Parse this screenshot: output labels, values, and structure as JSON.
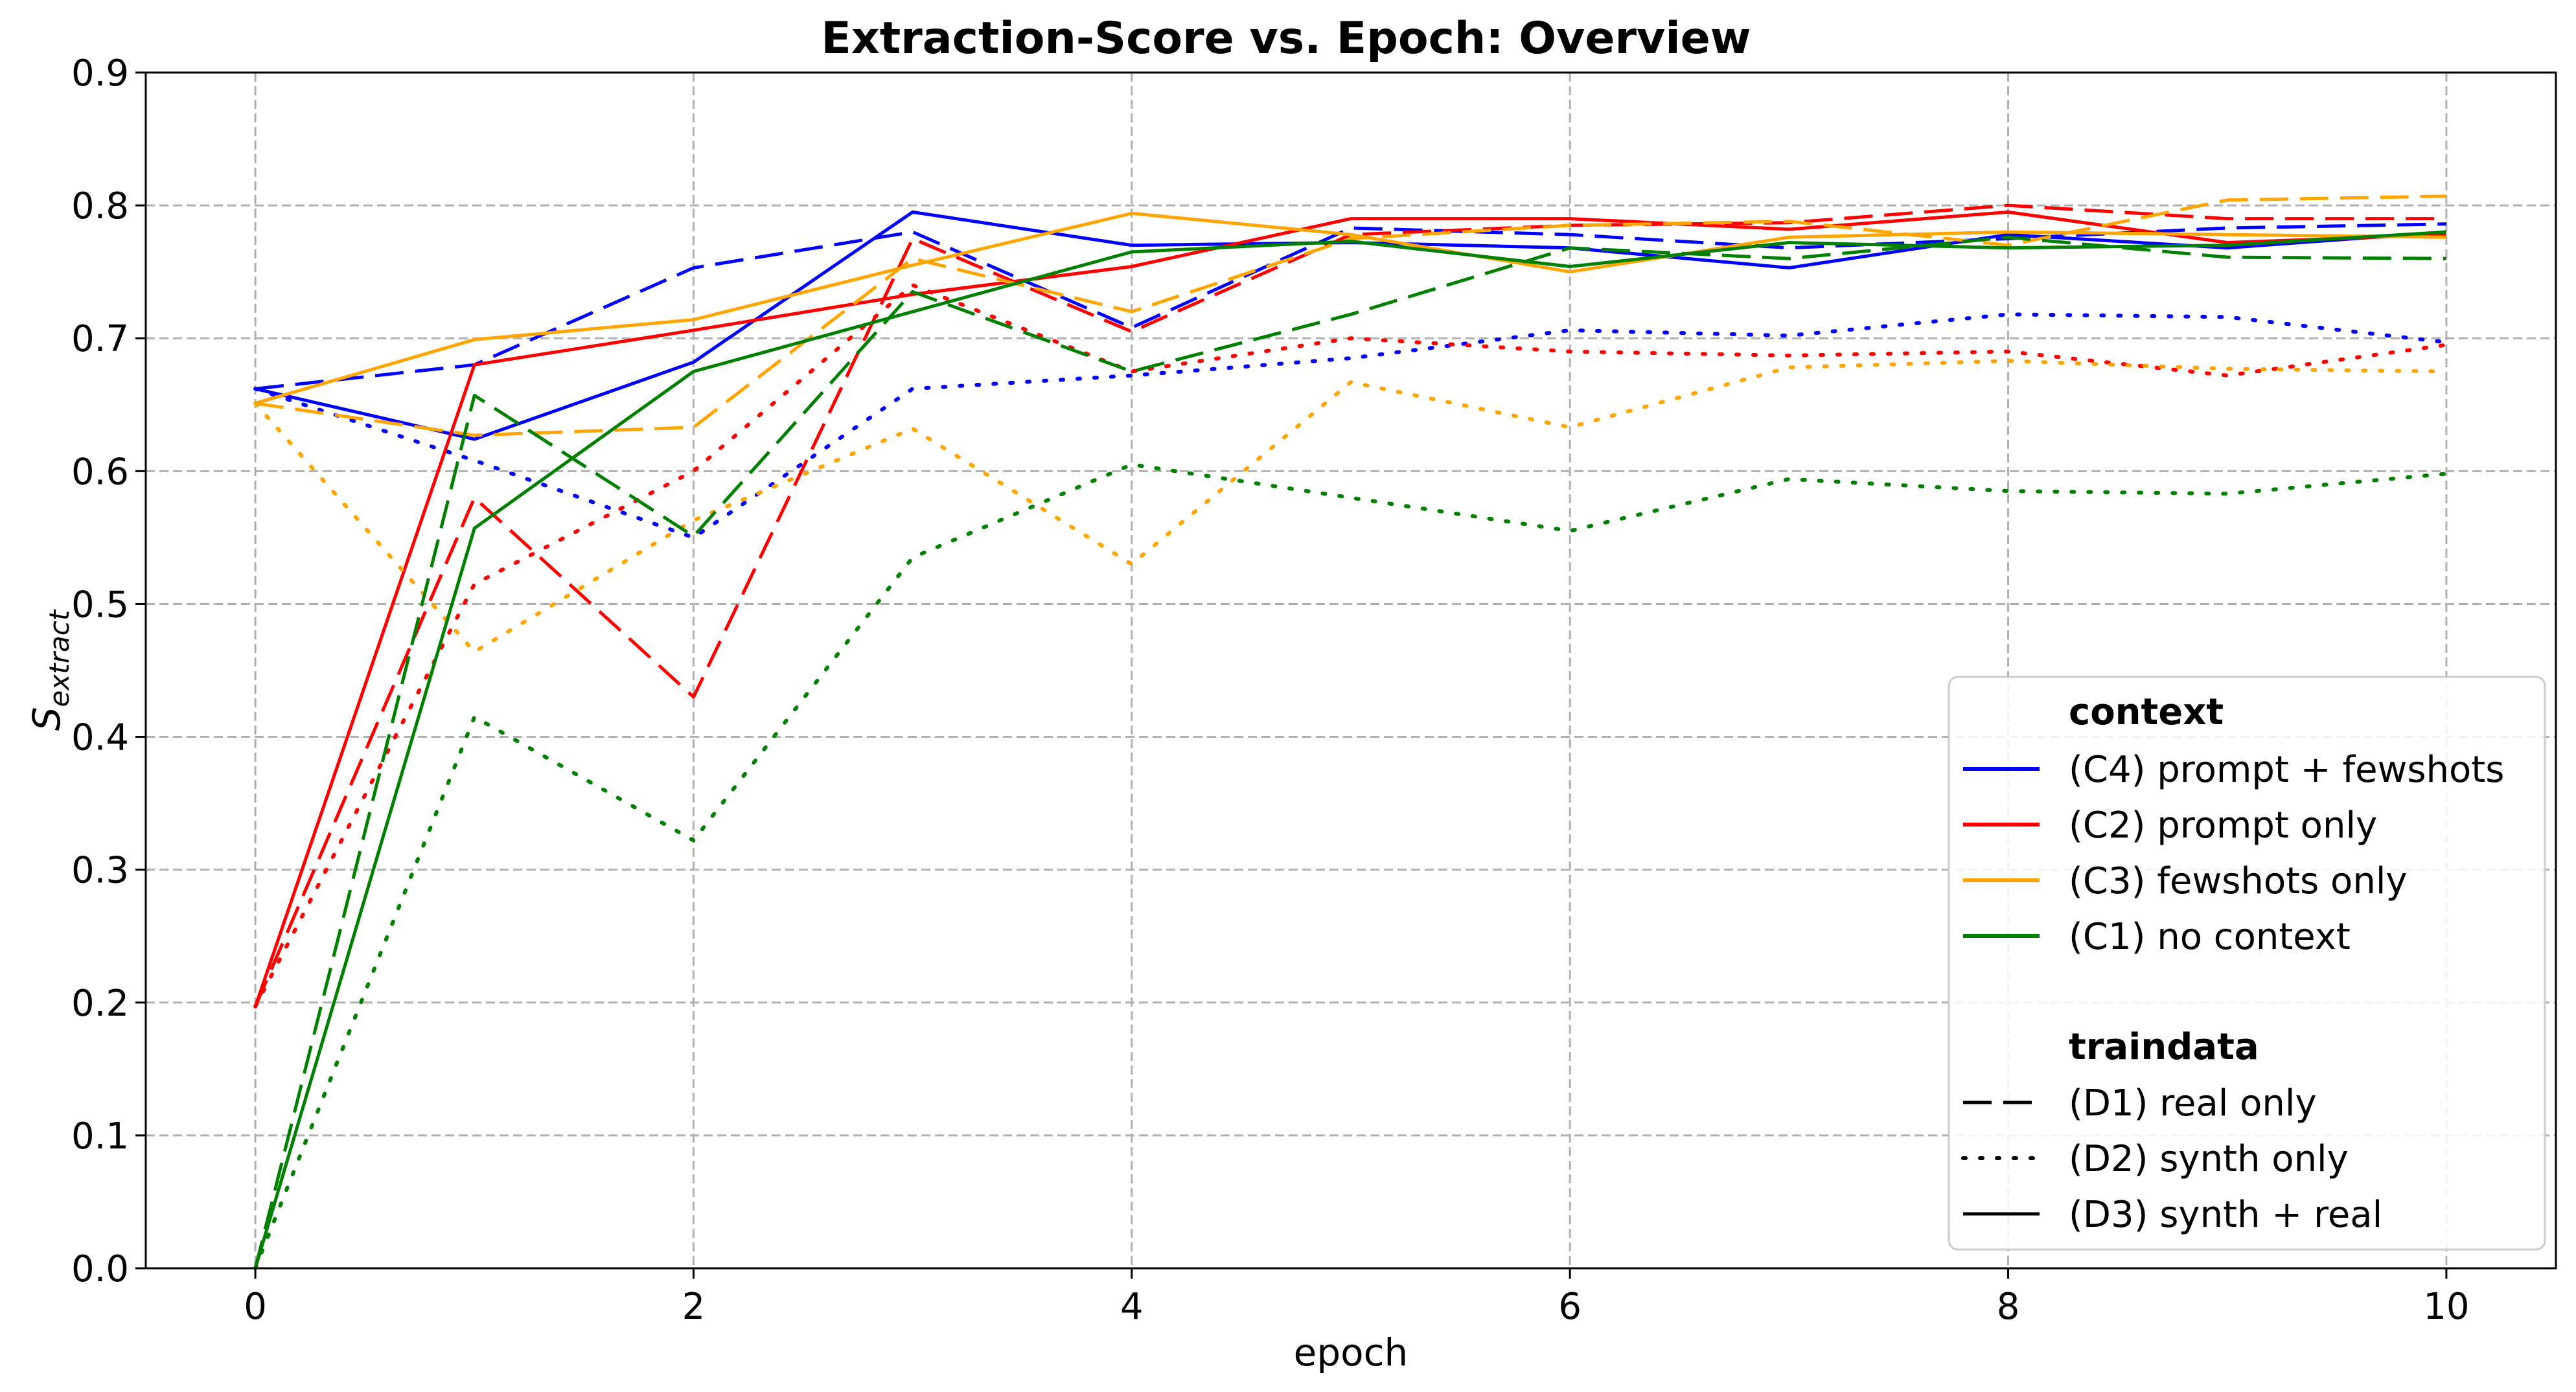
{
  "chart_data": {
    "type": "line",
    "title": "Extraction-Score vs. Epoch: Overview",
    "xlabel": "epoch",
    "ylabel_main": "S",
    "ylabel_sub": "extract",
    "xlim": [
      -0.5,
      10.5
    ],
    "ylim": [
      0,
      0.9
    ],
    "xticks": [
      0,
      2,
      4,
      6,
      8,
      10
    ],
    "xtick_labels": [
      "0",
      "2",
      "4",
      "6",
      "8",
      "10"
    ],
    "yticks": [
      0.0,
      0.1,
      0.2,
      0.3,
      0.4,
      0.5,
      0.6,
      0.7,
      0.8,
      0.9
    ],
    "ytick_labels": [
      "0.0",
      "0.1",
      "0.2",
      "0.3",
      "0.4",
      "0.5",
      "0.6",
      "0.7",
      "0.8",
      "0.9"
    ],
    "grid": true,
    "legend_position": "lower-right",
    "x": [
      0,
      1,
      2,
      3,
      4,
      5,
      6,
      7,
      8,
      9,
      10
    ],
    "series": [
      {
        "context": "C4",
        "traindata": "D1",
        "color": "#0000ff",
        "style": "dashed",
        "values": [
          0.662,
          0.68,
          0.753,
          0.78,
          0.708,
          0.783,
          0.778,
          0.768,
          0.775,
          0.783,
          0.786
        ]
      },
      {
        "context": "C4",
        "traindata": "D2",
        "color": "#0000ff",
        "style": "dotted",
        "values": [
          0.662,
          0.608,
          0.55,
          0.662,
          0.672,
          0.685,
          0.706,
          0.702,
          0.718,
          0.716,
          0.697
        ]
      },
      {
        "context": "C4",
        "traindata": "D3",
        "color": "#0000ff",
        "style": "solid",
        "values": [
          0.662,
          0.624,
          0.682,
          0.795,
          0.77,
          0.772,
          0.768,
          0.753,
          0.778,
          0.768,
          0.78
        ]
      },
      {
        "context": "C2",
        "traindata": "D1",
        "color": "#ff0000",
        "style": "dashed",
        "values": [
          0.197,
          0.58,
          0.43,
          0.775,
          0.705,
          0.778,
          0.785,
          0.787,
          0.8,
          0.79,
          0.79
        ]
      },
      {
        "context": "C2",
        "traindata": "D2",
        "color": "#ff0000",
        "style": "dotted",
        "values": [
          0.197,
          0.515,
          0.6,
          0.74,
          0.675,
          0.7,
          0.69,
          0.687,
          0.69,
          0.672,
          0.695
        ]
      },
      {
        "context": "C2",
        "traindata": "D3",
        "color": "#ff0000",
        "style": "solid",
        "values": [
          0.197,
          0.68,
          0.706,
          0.733,
          0.754,
          0.79,
          0.79,
          0.782,
          0.795,
          0.772,
          0.778
        ]
      },
      {
        "context": "C3",
        "traindata": "D1",
        "color": "#ffa500",
        "style": "dashed",
        "values": [
          0.651,
          0.627,
          0.633,
          0.76,
          0.72,
          0.775,
          0.785,
          0.788,
          0.77,
          0.804,
          0.807
        ]
      },
      {
        "context": "C3",
        "traindata": "D2",
        "color": "#ffa500",
        "style": "dotted",
        "values": [
          0.651,
          0.464,
          0.563,
          0.632,
          0.53,
          0.667,
          0.633,
          0.678,
          0.683,
          0.677,
          0.675
        ]
      },
      {
        "context": "C3",
        "traindata": "D3",
        "color": "#ffa500",
        "style": "solid",
        "values": [
          0.651,
          0.699,
          0.714,
          0.755,
          0.794,
          0.778,
          0.75,
          0.776,
          0.78,
          0.778,
          0.776
        ]
      },
      {
        "context": "C1",
        "traindata": "D1",
        "color": "#008000",
        "style": "dashed",
        "values": [
          0.0,
          0.657,
          0.551,
          0.735,
          0.675,
          0.718,
          0.768,
          0.76,
          0.776,
          0.761,
          0.76
        ]
      },
      {
        "context": "C1",
        "traindata": "D2",
        "color": "#008000",
        "style": "dotted",
        "values": [
          0.0,
          0.415,
          0.322,
          0.535,
          0.605,
          0.58,
          0.555,
          0.594,
          0.585,
          0.583,
          0.598
        ]
      },
      {
        "context": "C1",
        "traindata": "D3",
        "color": "#008000",
        "style": "solid",
        "values": [
          0.0,
          0.557,
          0.675,
          0.72,
          0.765,
          0.773,
          0.754,
          0.772,
          0.768,
          0.77,
          0.78
        ]
      }
    ],
    "legend": {
      "context_title": "context",
      "context_items": [
        {
          "label": "(C4) prompt + fewshots",
          "color": "#0000ff"
        },
        {
          "label": "(C2) prompt only",
          "color": "#ff0000"
        },
        {
          "label": "(C3) fewshots only",
          "color": "#ffa500"
        },
        {
          "label": "(C1) no context",
          "color": "#008000"
        }
      ],
      "traindata_title": "traindata",
      "traindata_items": [
        {
          "label": "(D1) real only",
          "style": "dashed"
        },
        {
          "label": "(D2) synth only",
          "style": "dotted"
        },
        {
          "label": "(D3) synth + real",
          "style": "solid"
        }
      ]
    }
  }
}
